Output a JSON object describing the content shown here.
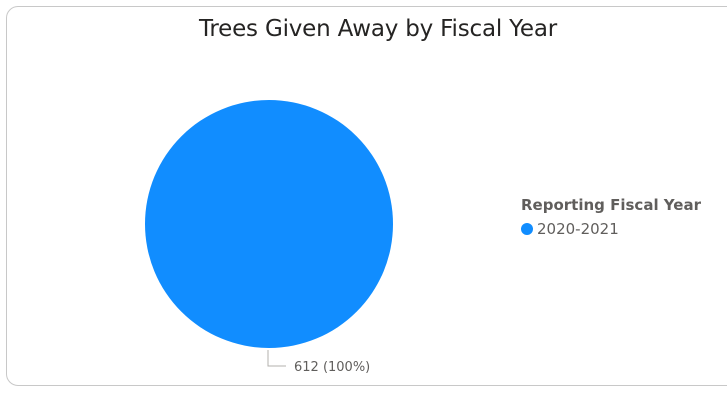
{
  "chart_data": {
    "type": "pie",
    "title": "Trees Given Away by Fiscal Year",
    "legend": {
      "title": "Reporting Fiscal Year",
      "placement": "right"
    },
    "slices": [
      {
        "label": "2020-2021",
        "value": 612,
        "percent": 100,
        "data_label": "612 (100%)",
        "color": "#118DFF"
      }
    ]
  }
}
